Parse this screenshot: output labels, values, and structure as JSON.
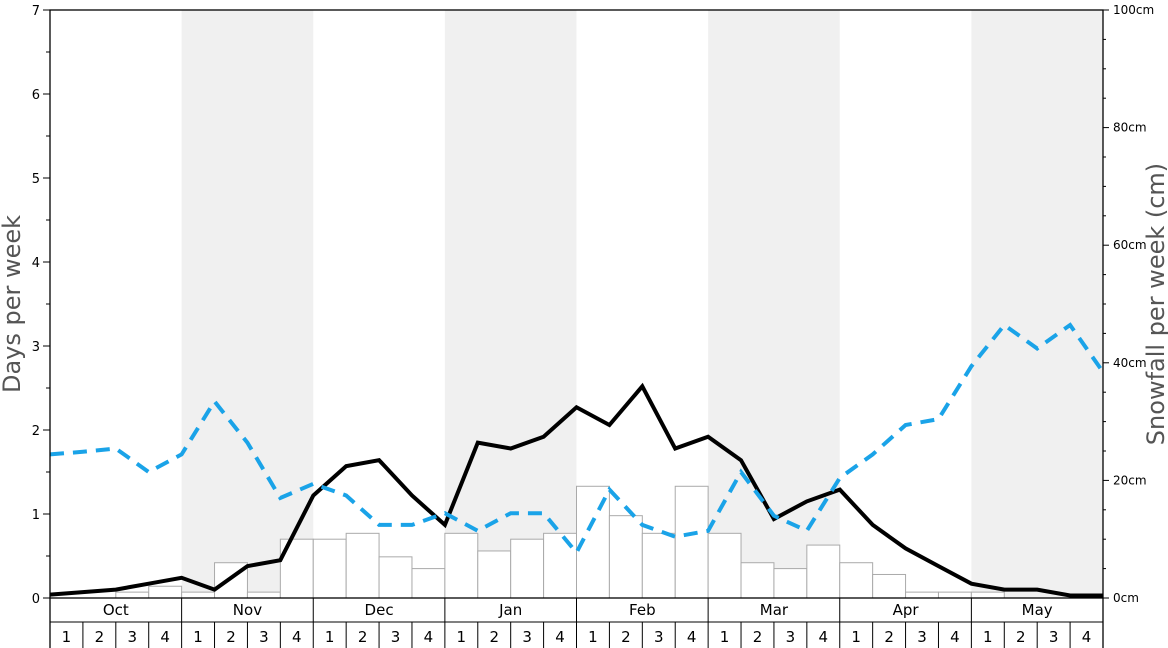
{
  "chart_data": {
    "type": "bar+line",
    "title": "",
    "ylabel_left": "Days per week",
    "ylabel_right": "Snowfall per week (cm)",
    "ylim_left": [
      0,
      7
    ],
    "ylim_right": [
      0,
      100
    ],
    "left_ticks": [
      "0",
      "1",
      "2",
      "3",
      "4",
      "5",
      "6",
      "7"
    ],
    "right_ticks": [
      "0cm",
      "20cm",
      "40cm",
      "60cm",
      "80cm",
      "100cm"
    ],
    "months": [
      "Oct",
      "Nov",
      "Dec",
      "Jan",
      "Feb",
      "Mar",
      "Apr",
      "May"
    ],
    "weeks": [
      "1",
      "2",
      "3",
      "4"
    ],
    "shaded_months": [
      "Nov",
      "Jan",
      "Mar",
      "May"
    ],
    "series": [
      {
        "kind": "bar",
        "axis": "right",
        "color": "#ffffff",
        "stroke": "#aaaaaa",
        "values": [
          0,
          0,
          1,
          2,
          1,
          6,
          1,
          10,
          10,
          11,
          7,
          5,
          11,
          8,
          10,
          11,
          19,
          14,
          11,
          19,
          11,
          6,
          5,
          9,
          6,
          4,
          1,
          1,
          1,
          0,
          0,
          0
        ]
      },
      {
        "kind": "line",
        "axis": "left",
        "color": "#000000",
        "style": "solid",
        "values": [
          0.04,
          0.07,
          0.1,
          0.17,
          0.24,
          0.1,
          0.38,
          0.45,
          1.22,
          1.57,
          1.64,
          1.22,
          0.87,
          1.85,
          1.78,
          1.92,
          2.27,
          2.06,
          2.52,
          1.78,
          1.92,
          1.64,
          0.94,
          1.15,
          1.29,
          0.87,
          0.59,
          0.38,
          0.17,
          0.1,
          0.1,
          0.03,
          0.03
        ]
      },
      {
        "kind": "line",
        "axis": "left",
        "color": "#1aa3e8",
        "style": "dashed",
        "values": [
          1.71,
          1.74,
          1.78,
          1.5,
          1.71,
          2.34,
          1.85,
          1.19,
          1.36,
          1.22,
          0.87,
          0.87,
          1.01,
          0.8,
          1.01,
          1.01,
          0.54,
          1.29,
          0.87,
          0.73,
          0.8,
          1.5,
          0.98,
          0.8,
          1.43,
          1.71,
          2.06,
          2.13,
          2.76,
          3.25,
          2.97,
          3.25,
          2.69
        ]
      }
    ]
  }
}
